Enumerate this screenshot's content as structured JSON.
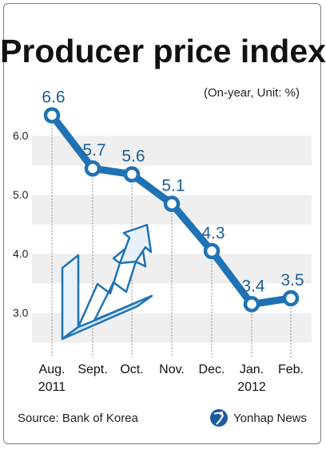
{
  "header": {
    "title": "Producer price index",
    "unit_note": "(On-year, Unit: %)"
  },
  "footer": {
    "source": "Source: Bank of Korea",
    "brand": "Yonhap News"
  },
  "colors": {
    "line": "#1f72b4",
    "point_fill": "#ffffff",
    "label": "#1f5e96",
    "band": "#efefef"
  },
  "chart_data": {
    "type": "line",
    "title": "Producer price index",
    "subtitle": "(On-year, Unit: %)",
    "categories": [
      "Aug.",
      "Sept.",
      "Oct.",
      "Nov.",
      "Dec.",
      "Jan.",
      "Feb."
    ],
    "category_years": [
      "2011",
      "",
      "",
      "",
      "",
      "2012",
      ""
    ],
    "values": [
      6.6,
      5.7,
      5.6,
      5.1,
      4.3,
      3.4,
      3.5
    ],
    "value_labels": [
      "6.6",
      "5.7",
      "5.6",
      "5.1",
      "4.3",
      "3.4",
      "3.5"
    ],
    "yticks": [
      3.0,
      4.0,
      5.0,
      6.0
    ],
    "ytick_labels": [
      "3.0",
      "4.0",
      "5.0",
      "6.0"
    ],
    "ylim": [
      2.5,
      7.0
    ],
    "grid": "alternating horizontal bands",
    "icon": "upward-arrow-graphic-icon"
  }
}
